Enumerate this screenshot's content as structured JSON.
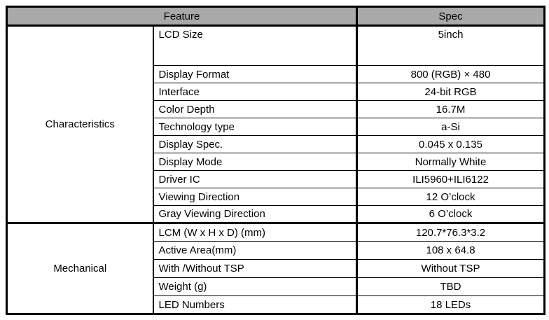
{
  "header": {
    "feature": "Feature",
    "spec": "Spec"
  },
  "sections": [
    {
      "label": "Characteristics",
      "rows": [
        {
          "feature": "LCD Size",
          "spec": "5inch"
        },
        {
          "feature": "Display Format",
          "spec": "800 (RGB) × 480"
        },
        {
          "feature": "Interface",
          "spec": "24-bit RGB"
        },
        {
          "feature": "Color Depth",
          "spec": "16.7M"
        },
        {
          "feature": "Technology type",
          "spec": "a-Si"
        },
        {
          "feature": "Display Spec.",
          "spec": "0.045 x 0.135"
        },
        {
          "feature": "Display Mode",
          "spec": "Normally White"
        },
        {
          "feature": "Driver IC",
          "spec": "ILI5960+ILI6122"
        },
        {
          "feature": "Viewing Direction",
          "spec": "12 O’clock"
        },
        {
          "feature": "Gray Viewing Direction",
          "spec": "6 O’clock"
        }
      ]
    },
    {
      "label": "Mechanical",
      "rows": [
        {
          "feature": "LCM (W x H x D) (mm)",
          "spec": "120.7*76.3*3.2"
        },
        {
          "feature": "Active Area(mm)",
          "spec": "108 x 64.8"
        },
        {
          "feature": "With /Without TSP",
          "spec": "Without TSP"
        },
        {
          "feature": "Weight (g)",
          "spec": "TBD"
        },
        {
          "feature": "LED Numbers",
          "spec": "18 LEDs"
        }
      ]
    }
  ],
  "colors": {
    "header_bg": "#a9a9a9",
    "border": "#000000",
    "background": "#ffffff",
    "text": "#000000"
  }
}
